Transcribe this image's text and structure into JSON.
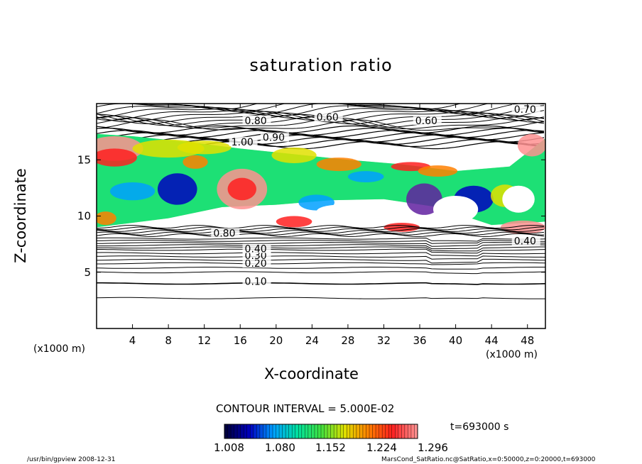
{
  "chart_data": {
    "type": "heatmap",
    "title": "saturation ratio",
    "xlabel": "X-coordinate",
    "ylabel": "Z-coordinate",
    "x_unit": "(x1000 m)",
    "y_unit": "(x1000 m)",
    "xlim": [
      0,
      50
    ],
    "ylim": [
      0,
      20
    ],
    "x_ticks": [
      4,
      8,
      12,
      16,
      20,
      24,
      28,
      32,
      36,
      40,
      44,
      48
    ],
    "y_ticks": [
      5,
      10,
      15
    ],
    "contour_interval_text": "CONTOUR INTERVAL = 5.000E-02",
    "contour_labels": [
      "0.10",
      "0.20",
      "0.30",
      "0.40",
      "0.60",
      "0.60",
      "0.80",
      "0.90",
      "0.80",
      "1.00",
      "0.70",
      "0.40"
    ],
    "colorbar": {
      "ticks": [
        "1.008",
        "1.080",
        "1.152",
        "1.224",
        "1.296"
      ],
      "colors": [
        "#000040",
        "#0000c0",
        "#00a0ff",
        "#00e0a0",
        "#40e040",
        "#e0e000",
        "#ff8000",
        "#ff2020",
        "#ff9090"
      ]
    },
    "time_label": "t=693000 s"
  },
  "footer": {
    "left": "/usr/bin/gpview   2008-12-31",
    "right": "MarsCond_SatRatio.nc@SatRatio,x=0:50000,z=0:20000,t=693000"
  }
}
